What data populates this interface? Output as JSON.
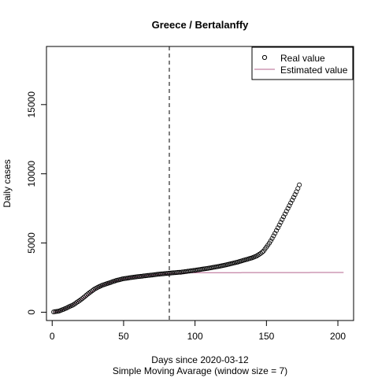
{
  "chart_data": {
    "type": "scatter",
    "title": "Greece / Bertalanffy",
    "xlabel": "Days since 2020-03-12",
    "subtitle": "Simple Moving Avarage (window size = 7)",
    "ylabel": "Daily cases",
    "xlim": [
      -4,
      211
    ],
    "ylim": [
      -600,
      19200
    ],
    "xticks": [
      0,
      50,
      100,
      150,
      200
    ],
    "yticks": [
      0,
      5000,
      10000,
      15000
    ],
    "ytick_rotation": "vertical",
    "grid": false,
    "legend": {
      "position": "top-right",
      "entries": [
        {
          "label": "Real value",
          "symbol": "open-circle",
          "color": "#000000"
        },
        {
          "label": "Estimated value",
          "symbol": "line",
          "color": "#b5648f"
        }
      ]
    },
    "vline": {
      "x": 82,
      "style": "dashed",
      "color": "#000000"
    },
    "real_anchors": [
      [
        1,
        20
      ],
      [
        5,
        90
      ],
      [
        10,
        300
      ],
      [
        15,
        550
      ],
      [
        20,
        900
      ],
      [
        25,
        1320
      ],
      [
        30,
        1700
      ],
      [
        35,
        1950
      ],
      [
        40,
        2120
      ],
      [
        45,
        2300
      ],
      [
        50,
        2420
      ],
      [
        55,
        2500
      ],
      [
        60,
        2570
      ],
      [
        65,
        2630
      ],
      [
        70,
        2690
      ],
      [
        75,
        2750
      ],
      [
        80,
        2800
      ],
      [
        85,
        2850
      ],
      [
        90,
        2890
      ],
      [
        95,
        2960
      ],
      [
        100,
        3030
      ],
      [
        105,
        3110
      ],
      [
        110,
        3190
      ],
      [
        115,
        3280
      ],
      [
        120,
        3380
      ],
      [
        125,
        3500
      ],
      [
        130,
        3630
      ],
      [
        135,
        3780
      ],
      [
        140,
        3930
      ],
      [
        143,
        4060
      ],
      [
        146,
        4250
      ],
      [
        148,
        4420
      ],
      [
        150,
        4700
      ],
      [
        153,
        5150
      ],
      [
        156,
        5700
      ],
      [
        159,
        6300
      ],
      [
        162,
        6900
      ],
      [
        165,
        7500
      ],
      [
        168,
        8100
      ],
      [
        171,
        8700
      ],
      [
        173,
        9200
      ]
    ],
    "estimated_anchors": [
      [
        1,
        10
      ],
      [
        5,
        80
      ],
      [
        10,
        280
      ],
      [
        15,
        560
      ],
      [
        20,
        900
      ],
      [
        25,
        1280
      ],
      [
        30,
        1650
      ],
      [
        35,
        1930
      ],
      [
        40,
        2120
      ],
      [
        45,
        2280
      ],
      [
        50,
        2410
      ],
      [
        55,
        2500
      ],
      [
        60,
        2570
      ],
      [
        65,
        2630
      ],
      [
        70,
        2690
      ],
      [
        75,
        2740
      ],
      [
        80,
        2780
      ],
      [
        90,
        2830
      ],
      [
        100,
        2850
      ],
      [
        120,
        2860
      ],
      [
        150,
        2865
      ],
      [
        204,
        2870
      ]
    ],
    "real_x_range": [
      1,
      173
    ],
    "colors": {
      "real": "#000000",
      "estimated": "#b5648f",
      "axis": "#000000"
    }
  }
}
